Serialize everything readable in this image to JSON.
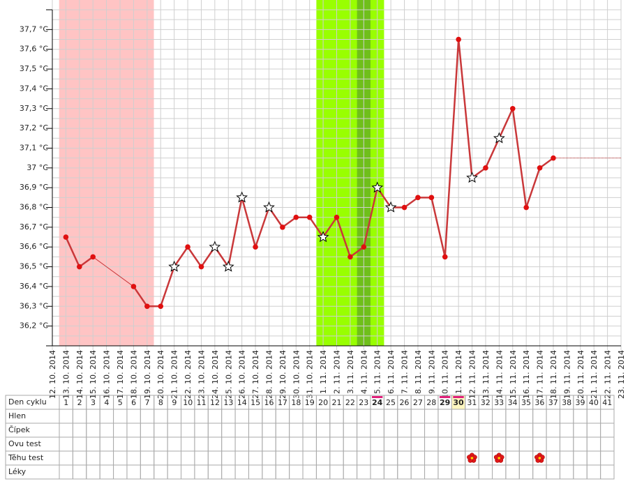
{
  "chart_data": {
    "type": "line",
    "x": [
      "12. 10. 2014",
      "13. 10. 2014",
      "14. 10. 2014",
      "15. 10. 2014",
      "16. 10. 2014",
      "17. 10. 2014",
      "18. 10. 2014",
      "19. 10. 2014",
      "20. 10. 2014",
      "21. 10. 2014",
      "22. 10. 2014",
      "23. 10. 2014",
      "24. 10. 2014",
      "25. 10. 2014",
      "26. 10. 2014",
      "27. 10. 2014",
      "28. 10. 2014",
      "29. 10. 2014",
      "30. 10. 2014",
      "31. 10. 2014",
      "1. 11. 2014",
      "2. 11. 2014",
      "3. 11. 2014",
      "4. 11. 2014",
      "5. 11. 2014",
      "6. 11. 2014",
      "7. 11. 2014",
      "8. 11. 2014",
      "9. 11. 2014",
      "10. 11. 2014",
      "11. 11. 2014",
      "12. 11. 2014",
      "13. 11. 2014",
      "14. 11. 2014",
      "15. 11. 2014",
      "16. 11. 2014",
      "17. 11. 2014",
      "18. 11. 2014",
      "19. 11. 2014",
      "20. 11. 2014",
      "21. 11. 2014",
      "22. 11. 2014",
      "23. 11. 2014"
    ],
    "series": [
      {
        "color": "#c9383a",
        "values": [
          null,
          36.65,
          36.5,
          36.55,
          null,
          null,
          36.4,
          36.3,
          36.3,
          36.5,
          36.6,
          36.5,
          36.6,
          36.5,
          36.85,
          36.6,
          36.8,
          36.7,
          36.75,
          36.75,
          36.65,
          36.75,
          36.55,
          36.6,
          36.9,
          36.8,
          36.8,
          36.85,
          36.85,
          36.55,
          37.65,
          36.95,
          37.0,
          37.15,
          37.3,
          36.8,
          37.0,
          37.05,
          null,
          null,
          null,
          null,
          null
        ],
        "markers": [
          null,
          "dot",
          "dot",
          "dot",
          null,
          null,
          "dot",
          "dot",
          "dot",
          "star",
          "dot",
          "dot",
          "star",
          "star",
          "star",
          "dot",
          "star",
          "dot",
          "dot",
          "dot",
          "star",
          "dot",
          "dot",
          "dot",
          "star",
          "star",
          "dot",
          "dot",
          "dot",
          "dot",
          "dot",
          "star",
          "dot",
          "star",
          "dot",
          "dot",
          "dot",
          "dot",
          null,
          null,
          null,
          null,
          null
        ]
      }
    ],
    "ylim": [
      36.1,
      37.8
    ],
    "yticks": [
      {
        "value": 36.1,
        "label": ""
      },
      {
        "value": 36.2,
        "label": "36,2 °C"
      },
      {
        "value": 36.3,
        "label": "36,3 °C"
      },
      {
        "value": 36.4,
        "label": "36,4 °C"
      },
      {
        "value": 36.5,
        "label": "36,5 °C"
      },
      {
        "value": 36.6,
        "label": "36,6 °C"
      },
      {
        "value": 36.7,
        "label": "36,7 °C"
      },
      {
        "value": 36.8,
        "label": "36,8 °C"
      },
      {
        "value": 36.9,
        "label": "36,9 °C"
      },
      {
        "value": 37,
        "label": "37 °C"
      },
      {
        "value": 37.1,
        "label": "37,1 °C"
      },
      {
        "value": 37.2,
        "label": "37,2 °C"
      },
      {
        "value": 37.3,
        "label": "37,3 °C"
      },
      {
        "value": 37.4,
        "label": "37,4 °C"
      },
      {
        "value": 37.5,
        "label": "37,5 °C"
      },
      {
        "value": 37.6,
        "label": "37,6 °C"
      },
      {
        "value": 37.7,
        "label": "37,7 °C"
      },
      {
        "value": 37.8,
        "label": ""
      }
    ],
    "grid_step": 0.05,
    "bands": [
      {
        "from": 1,
        "to": 7,
        "color": "#ffc4c4"
      },
      {
        "from": 20,
        "to": 24,
        "color": "#99ff00"
      },
      {
        "from": 23,
        "to": 23,
        "color": "#6fbf1a"
      }
    ]
  },
  "table": {
    "row_labels": [
      "Den cyklu",
      "Hlen",
      "Čípek",
      "Ovu test",
      "Těhu test",
      "Léky"
    ],
    "cycle_days": [
      1,
      2,
      3,
      4,
      5,
      6,
      7,
      8,
      9,
      10,
      11,
      12,
      13,
      14,
      15,
      16,
      17,
      18,
      19,
      20,
      21,
      22,
      23,
      24,
      25,
      26,
      27,
      28,
      29,
      30,
      31,
      32,
      33,
      34,
      35,
      36,
      37,
      38,
      39,
      40,
      41
    ],
    "marked_days": [
      24,
      29,
      30
    ],
    "current_day": 30,
    "pregnancy_test_days": [
      31,
      33,
      36
    ]
  }
}
